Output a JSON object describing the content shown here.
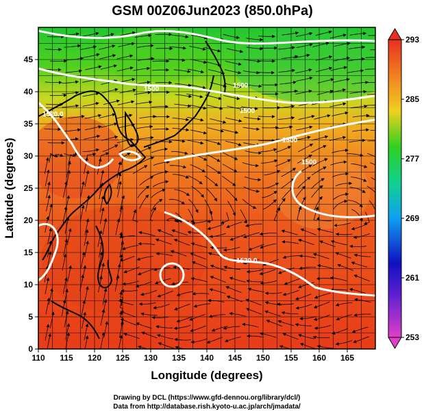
{
  "title": "GSM 00Z06Jun2023 (850.0hPa)",
  "x_axis": {
    "label": "Longitude (degrees)",
    "ticks": [
      "110",
      "115",
      "120",
      "125",
      "130",
      "135",
      "140",
      "145",
      "150",
      "155",
      "160",
      "165"
    ]
  },
  "y_axis": {
    "label": "Latitude  (degrees)",
    "ticks": [
      "0",
      "5",
      "10",
      "15",
      "20",
      "25",
      "30",
      "35",
      "40",
      "45"
    ]
  },
  "colorbar": {
    "ticks": [
      "253",
      "261",
      "269",
      "277",
      "285",
      "293"
    ],
    "colors": [
      "#e040c8",
      "#1010c0",
      "#10a0f0",
      "#10d090",
      "#30d020",
      "#f0d020",
      "#f08020",
      "#e83020"
    ]
  },
  "contour_labels": [
    "1500",
    "1500",
    "1500",
    "1500",
    "1500",
    "1520.0",
    "1520.0"
  ],
  "credits": {
    "drawing": "Drawing by DCL (https://www.gfd-dennou.org/library/dcl/)",
    "data": "Data from http://database.rish.kyoto-u.ac.jp/arch/jmadata/"
  },
  "chart_data": {
    "type": "heatmap",
    "title": "GSM 00Z06Jun2023 (850.0hPa)",
    "xlabel": "Longitude (degrees)",
    "ylabel": "Latitude  (degrees)",
    "xlim": [
      110,
      170
    ],
    "ylim": [
      0,
      50
    ],
    "colorbar_range": [
      253,
      293
    ],
    "grid": true,
    "overlays": [
      "wind streamlines",
      "geopotential height contours (white)",
      "coastlines",
      "lat/lon grid"
    ]
  }
}
